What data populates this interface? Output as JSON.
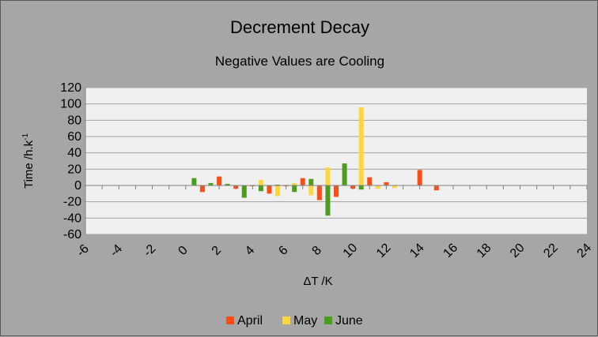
{
  "chart_data": {
    "type": "bar",
    "title": "Decrement Decay",
    "subtitle": "Negative Values are Cooling",
    "xlabel": "ΔT /K",
    "ylabel": "Time /h.k",
    "ylabel_superscript": "-1",
    "xlim": [
      -6,
      24
    ],
    "ylim": [
      -60,
      120
    ],
    "x_ticks": [
      -6,
      -4,
      -2,
      0,
      2,
      4,
      6,
      8,
      10,
      12,
      14,
      16,
      18,
      20,
      22,
      24
    ],
    "y_ticks": [
      -60,
      -40,
      -20,
      0,
      20,
      40,
      60,
      80,
      100,
      120
    ],
    "grid": "horizontal",
    "legend_position": "bottom",
    "colors": {
      "April": "#ff4b14",
      "May": "#ffd53c",
      "June": "#4c9c1e"
    },
    "series": [
      {
        "name": "April",
        "points": [
          {
            "x": 1,
            "y": -8
          },
          {
            "x": 2,
            "y": 11
          },
          {
            "x": 3,
            "y": -4
          },
          {
            "x": 4,
            "y": 0
          },
          {
            "x": 5,
            "y": -10
          },
          {
            "x": 6,
            "y": 0
          },
          {
            "x": 7,
            "y": 9
          },
          {
            "x": 8,
            "y": -18
          },
          {
            "x": 9,
            "y": -14
          },
          {
            "x": 10,
            "y": -4
          },
          {
            "x": 11,
            "y": 10
          },
          {
            "x": 12,
            "y": 4
          },
          {
            "x": 14,
            "y": 19
          },
          {
            "x": 15,
            "y": -6
          }
        ]
      },
      {
        "name": "May",
        "points": [
          {
            "x": 3.5,
            "y": -4
          },
          {
            "x": 4.5,
            "y": 7
          },
          {
            "x": 5.5,
            "y": -13
          },
          {
            "x": 6.5,
            "y": 3
          },
          {
            "x": 7.5,
            "y": -12
          },
          {
            "x": 8.5,
            "y": 22
          },
          {
            "x": 9.5,
            "y": 3
          },
          {
            "x": 10.5,
            "y": 96
          },
          {
            "x": 11.5,
            "y": -4
          },
          {
            "x": 12.5,
            "y": -3
          }
        ]
      },
      {
        "name": "June",
        "points": [
          {
            "x": 0.5,
            "y": 9
          },
          {
            "x": 1.5,
            "y": 3
          },
          {
            "x": 2.5,
            "y": 2
          },
          {
            "x": 3.5,
            "y": -15
          },
          {
            "x": 4.5,
            "y": -7
          },
          {
            "x": 5.5,
            "y": 1
          },
          {
            "x": 6.5,
            "y": -8
          },
          {
            "x": 7.5,
            "y": 8
          },
          {
            "x": 8.5,
            "y": -37
          },
          {
            "x": 9.5,
            "y": 27
          },
          {
            "x": 10.5,
            "y": -5
          }
        ]
      }
    ]
  }
}
